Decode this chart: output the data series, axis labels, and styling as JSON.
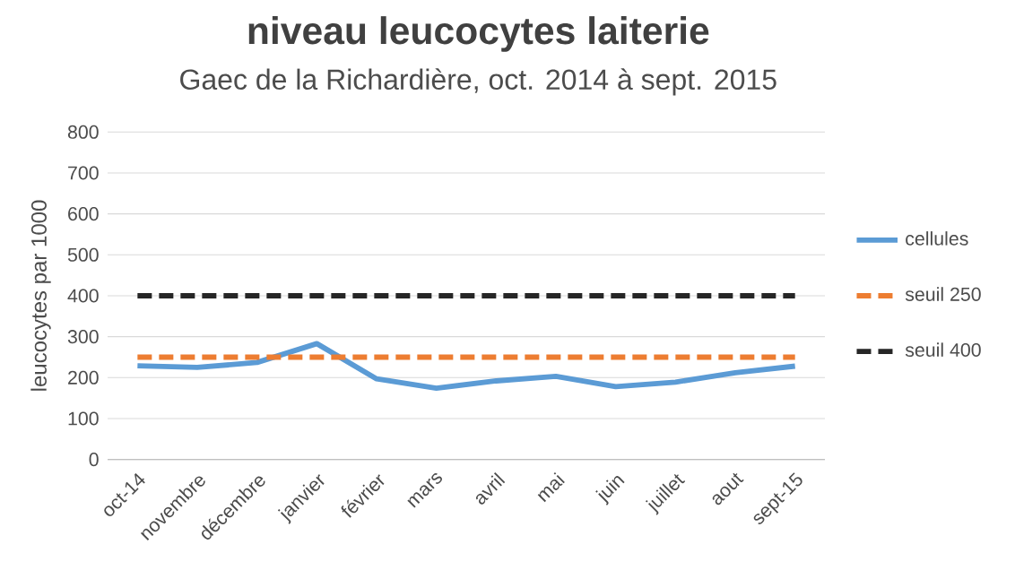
{
  "chart_data": {
    "type": "line",
    "title": "niveau leucocytes laiterie",
    "subtitle": "Gaec de la Richardière, oct. 2014 à sept. 2015",
    "ylabel": "leucocytes par 1000",
    "categories": [
      "oct-14",
      "novembre",
      "décembre",
      "janvier",
      "février",
      "mars",
      "avril",
      "mai",
      "juin",
      "juillet",
      "aout",
      "sept-15"
    ],
    "series": [
      {
        "name": "cellules",
        "color": "#5b9bd5",
        "line_style": "solid",
        "values": [
          229,
          225,
          237,
          283,
          197,
          174,
          192,
          203,
          178,
          189,
          212,
          228
        ]
      },
      {
        "name": "seuil 250",
        "color": "#ed7d31",
        "line_style": "dashed",
        "values": [
          250,
          250,
          250,
          250,
          250,
          250,
          250,
          250,
          250,
          250,
          250,
          250
        ]
      },
      {
        "name": "seuil 400",
        "color": "#262626",
        "line_style": "dashed",
        "values": [
          400,
          400,
          400,
          400,
          400,
          400,
          400,
          400,
          400,
          400,
          400,
          400
        ]
      }
    ],
    "ylim": [
      0,
      800
    ],
    "yticks": [
      0,
      100,
      200,
      300,
      400,
      500,
      600,
      700,
      800
    ],
    "grid": "y",
    "legend": "right",
    "marker": "none"
  }
}
